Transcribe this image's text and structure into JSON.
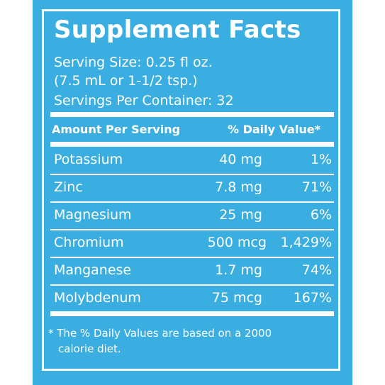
{
  "title": "Supplement Facts",
  "serving_size": "Serving Size: 0.25 fl oz.",
  "serving_equiv": "(7.5 mL or 1-1/2 tsp.)",
  "servings_per_container": "Servings Per Container: 32",
  "header": {
    "amount": "Amount Per Serving",
    "daily_value": "% Daily Value*"
  },
  "rows": [
    {
      "name": "Potassium",
      "amount": "40 mg",
      "dv": "1%"
    },
    {
      "name": "Zinc",
      "amount": "7.8 mg",
      "dv": "71%"
    },
    {
      "name": "Magnesium",
      "amount": "25 mg",
      "dv": "6%"
    },
    {
      "name": "Chromium",
      "amount": "500 mcg",
      "dv": "1,429%"
    },
    {
      "name": "Manganese",
      "amount": "1.7 mg",
      "dv": "74%"
    },
    {
      "name": "Molybdenum",
      "amount": "75 mcg",
      "dv": "167%"
    }
  ],
  "footnote_line1": "* The % Daily Values are based on a 2000",
  "footnote_line2": "calorie diet.",
  "colors": {
    "background": "#3aaee0",
    "text": "#ffffff"
  }
}
